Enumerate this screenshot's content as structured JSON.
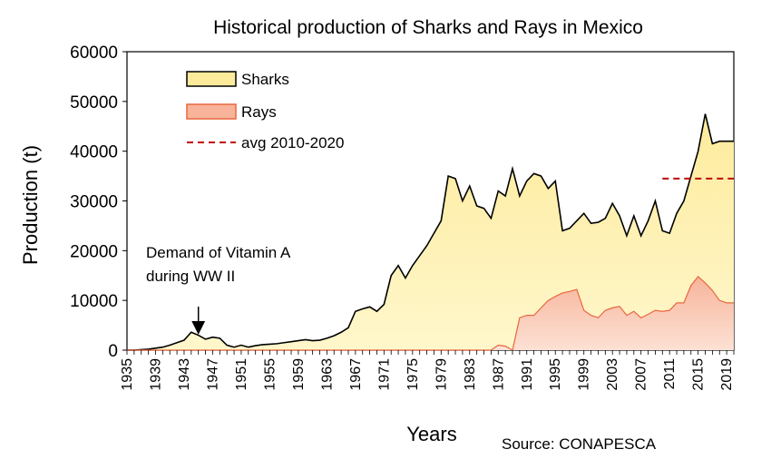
{
  "chart_data": {
    "type": "area",
    "title": "Historical production  of Sharks and Rays in Mexico",
    "xlabel": "Years",
    "ylabel": "Production (t)",
    "xlim": [
      1935,
      2020
    ],
    "ylim": [
      0,
      60000
    ],
    "y_ticks": [
      0,
      10000,
      20000,
      30000,
      40000,
      50000,
      60000
    ],
    "x_tick_labels": [
      "1935",
      "1939",
      "1943",
      "1947",
      "1951",
      "1955",
      "1959",
      "1963",
      "1967",
      "1971",
      "1975",
      "1979",
      "1983",
      "1987",
      "1991",
      "1995",
      "1999",
      "2003",
      "2007",
      "2011",
      "2015",
      "2019"
    ],
    "x_tick_values": [
      1935,
      1939,
      1943,
      1947,
      1951,
      1955,
      1959,
      1963,
      1967,
      1971,
      1975,
      1979,
      1983,
      1987,
      1991,
      1995,
      1999,
      2003,
      2007,
      2011,
      2015,
      2019
    ],
    "grid": false,
    "legend_position": "top-left",
    "colors": {
      "sharks_fill": "#fdeb9c",
      "sharks_fill_light": "#fffbe3",
      "sharks_line": "#000000",
      "rays_fill": "#f7b49a",
      "rays_fill_light": "#fde1d5",
      "rays_line": "#e8673f",
      "avg_line": "#c00000"
    },
    "series": [
      {
        "name": "Sharks",
        "x": [
          1935,
          1936,
          1937,
          1938,
          1939,
          1940,
          1941,
          1942,
          1943,
          1944,
          1945,
          1946,
          1947,
          1948,
          1949,
          1950,
          1951,
          1952,
          1953,
          1954,
          1955,
          1956,
          1957,
          1958,
          1959,
          1960,
          1961,
          1962,
          1963,
          1964,
          1965,
          1966,
          1967,
          1968,
          1969,
          1970,
          1971,
          1972,
          1973,
          1974,
          1975,
          1976,
          1977,
          1978,
          1979,
          1980,
          1981,
          1982,
          1983,
          1984,
          1985,
          1986,
          1987,
          1988,
          1989,
          1990,
          1991,
          1992,
          1993,
          1994,
          1995,
          1996,
          1997,
          1998,
          1999,
          2000,
          2001,
          2002,
          2003,
          2004,
          2005,
          2006,
          2007,
          2008,
          2009,
          2010,
          2011,
          2012,
          2013,
          2014,
          2015,
          2016,
          2017,
          2018,
          2019,
          2020
        ],
        "values": [
          0,
          0,
          100,
          200,
          400,
          600,
          1000,
          1500,
          2000,
          3600,
          3000,
          2200,
          2600,
          2400,
          1000,
          600,
          1000,
          600,
          900,
          1100,
          1200,
          1300,
          1500,
          1700,
          1900,
          2100,
          1900,
          2000,
          2400,
          2900,
          3600,
          4500,
          7800,
          8300,
          8700,
          7800,
          9200,
          15000,
          17000,
          14500,
          17000,
          19000,
          21000,
          23500,
          26000,
          35000,
          34500,
          30000,
          33000,
          29000,
          28500,
          26500,
          32000,
          31000,
          36500,
          31000,
          34000,
          35500,
          35000,
          32500,
          34000,
          24000,
          24500,
          26000,
          27500,
          25500,
          25700,
          26500,
          29500,
          27000,
          23000,
          27000,
          23000,
          26000,
          30000,
          24000,
          23500,
          27500,
          30000,
          35000,
          40000,
          47500,
          41500,
          42000,
          42000,
          42000
        ],
        "fill": "#fdeb9c",
        "line": "#000000"
      },
      {
        "name": "Rays",
        "x": [
          1935,
          1985,
          1986,
          1987,
          1988,
          1989,
          1990,
          1991,
          1992,
          1993,
          1994,
          1995,
          1996,
          1997,
          1998,
          1999,
          2000,
          2001,
          2002,
          2003,
          2004,
          2005,
          2006,
          2007,
          2008,
          2009,
          2010,
          2011,
          2012,
          2013,
          2014,
          2015,
          2016,
          2017,
          2018,
          2019,
          2020
        ],
        "values": [
          0,
          0,
          0,
          1000,
          800,
          0,
          6500,
          7000,
          7000,
          8500,
          10000,
          10800,
          11500,
          11800,
          12200,
          8000,
          7000,
          6500,
          8000,
          8500,
          8800,
          7000,
          7800,
          6500,
          7200,
          8000,
          7800,
          8000,
          9500,
          9500,
          13000,
          14800,
          13500,
          12000,
          10000,
          9500,
          9500
        ],
        "fill": "#f7b49a",
        "line": "#e8673f"
      }
    ],
    "avg_line": {
      "label": "avg 2010-2020",
      "x_start": 2010,
      "x_end": 2020,
      "y": 34500,
      "style": "dashed"
    },
    "annotations": [
      {
        "line1": "Demand of Vitamin A",
        "line2": "during WW II",
        "arrow_x": 1945,
        "arrow_y": 4500
      }
    ],
    "source": "Source: CONAPESCA"
  }
}
